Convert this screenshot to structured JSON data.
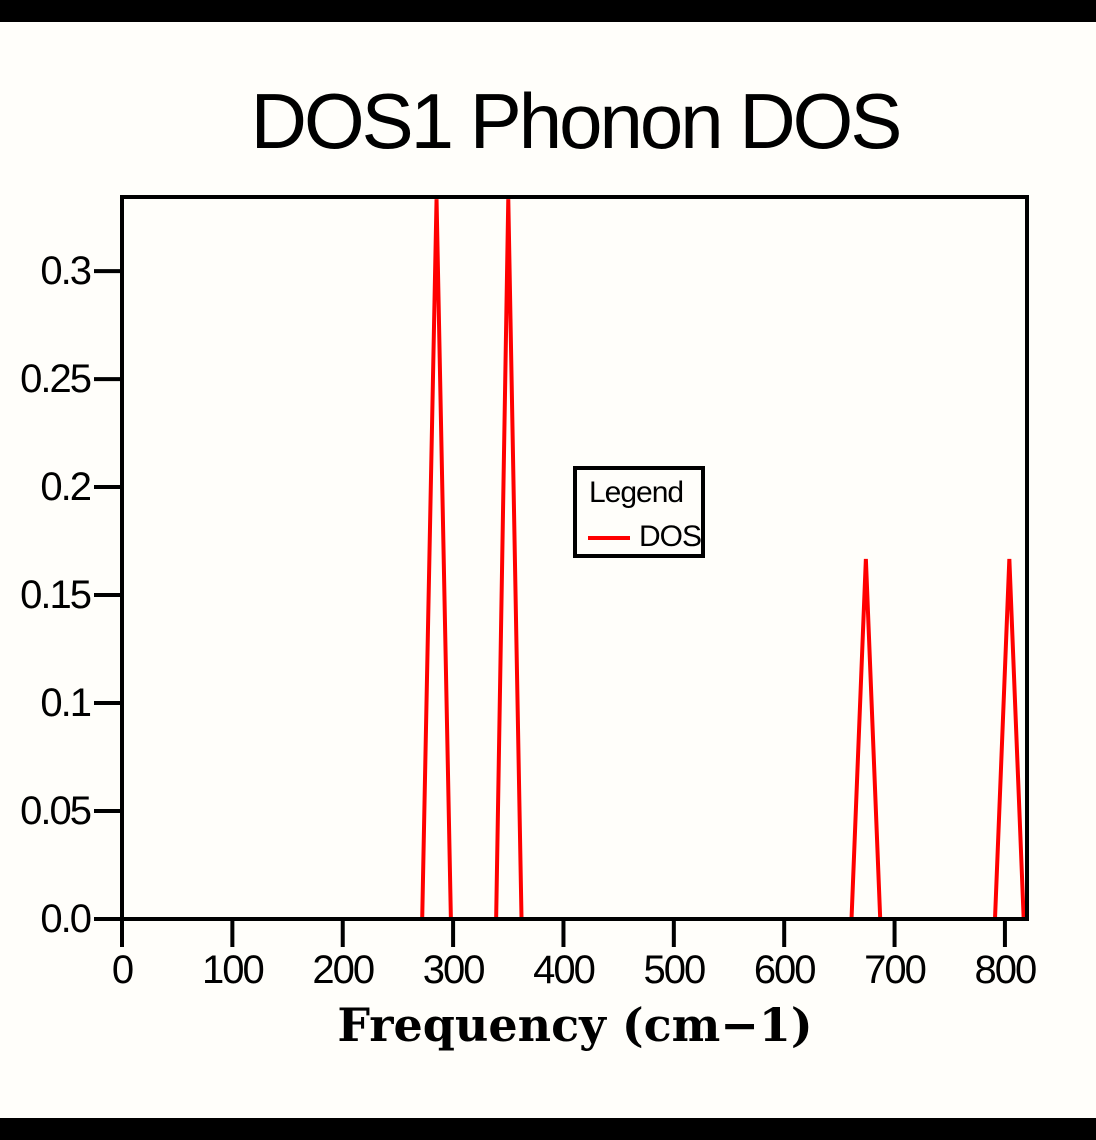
{
  "colors": {
    "line": "#ff0000",
    "axis": "#000000",
    "background": "#fffefa",
    "border_bars": "#000000",
    "text": "#000000"
  },
  "chart_data": {
    "type": "line",
    "title": "DOS1 Phonon DOS",
    "xlabel": "Frequency (cm−1)",
    "ylabel": "",
    "xlim": [
      0,
      820
    ],
    "ylim": [
      0,
      0.3343
    ],
    "grid": false,
    "xticks": {
      "values": [
        0,
        100,
        200,
        300,
        400,
        500,
        600,
        700,
        800
      ],
      "labels": [
        "0",
        "100",
        "200",
        "300",
        "400",
        "500",
        "600",
        "700",
        "800"
      ]
    },
    "yticks": {
      "values": [
        0.0,
        0.05,
        0.1,
        0.15,
        0.2,
        0.25,
        0.3
      ],
      "labels": [
        "0.0",
        "0.05",
        "0.1",
        "0.15",
        "0.2",
        "0.25",
        "0.3"
      ]
    },
    "legend": {
      "title": "Legend",
      "position": "center",
      "entries": [
        {
          "label": "DOS",
          "color": "#ff0000"
        }
      ]
    },
    "peaks": [
      {
        "frequency": 285,
        "height": 0.333
      },
      {
        "frequency": 350,
        "height": 0.333
      },
      {
        "frequency": 674,
        "height": 0.167
      },
      {
        "frequency": 804,
        "height": 0.167
      }
    ],
    "series": [
      {
        "name": "DOS",
        "color": "#ff0000",
        "points": [
          [
            0,
            0
          ],
          [
            272,
            0
          ],
          [
            285,
            0.3333
          ],
          [
            298,
            0
          ],
          [
            339,
            0
          ],
          [
            350,
            0.3333
          ],
          [
            362,
            0
          ],
          [
            661,
            0
          ],
          [
            674,
            0.1667
          ],
          [
            687,
            0
          ],
          [
            791,
            0
          ],
          [
            804,
            0.1667
          ],
          [
            817,
            0
          ],
          [
            820,
            0
          ]
        ]
      }
    ]
  }
}
